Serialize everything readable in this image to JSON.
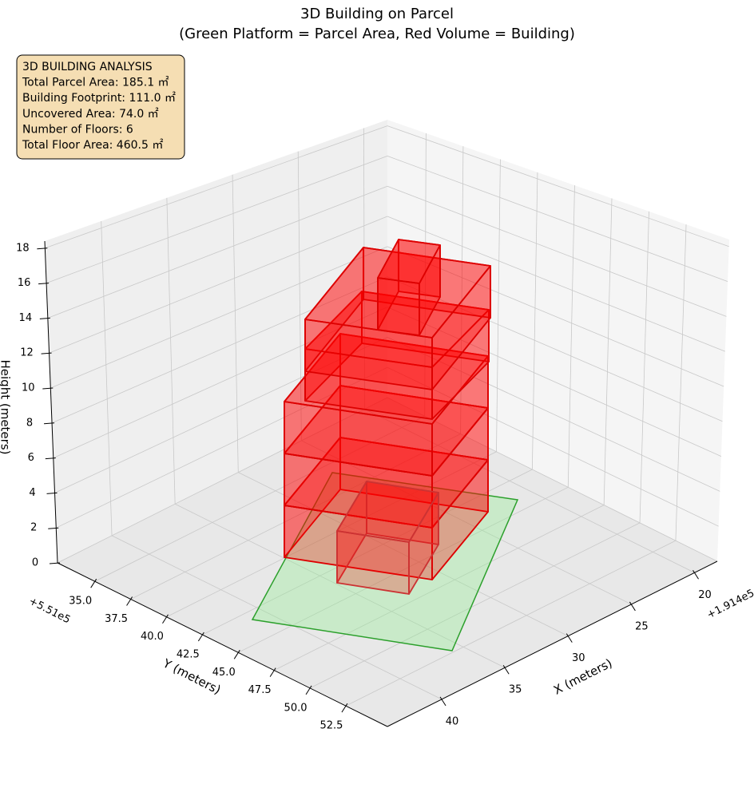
{
  "chart_data": {
    "type": "3d-box",
    "title": "3D Building on Parcel",
    "subtitle": "(Green Platform = Parcel Area, Red Volume = Building)",
    "x_label": "X (meters)",
    "y_label": "Y (meters)",
    "z_label": "Height (meters)",
    "x_offset": "+1.914e5",
    "y_offset": "+5.51e5",
    "xlim": [
      18.2,
      44.3
    ],
    "ylim": [
      32.4,
      55.4
    ],
    "zlim": [
      0,
      18.4
    ],
    "xticks": [
      20,
      25,
      30,
      35,
      40
    ],
    "yticks": [
      {
        "value": 35,
        "label": "35.0"
      },
      {
        "value": 37.5,
        "label": "37.5"
      },
      {
        "value": 40,
        "label": "40.0"
      },
      {
        "value": 42.5,
        "label": "42.5"
      },
      {
        "value": 45,
        "label": "45.0"
      },
      {
        "value": 47.5,
        "label": "47.5"
      },
      {
        "value": 50,
        "label": "50.0"
      },
      {
        "value": 52.5,
        "label": "52.5"
      }
    ],
    "zticks": [
      0,
      2,
      4,
      6,
      8,
      10,
      12,
      14,
      16,
      18
    ],
    "grid": true,
    "info": [
      "3D BUILDING ANALYSIS",
      "Total Parcel Area: 185.1 ㎡",
      "Building Footprint: 111.0 ㎡",
      "Uncovered Area: 74.0 ㎡",
      "Number of Floors: 6",
      "Total Floor Area: 460.5 ㎡"
    ]
  }
}
